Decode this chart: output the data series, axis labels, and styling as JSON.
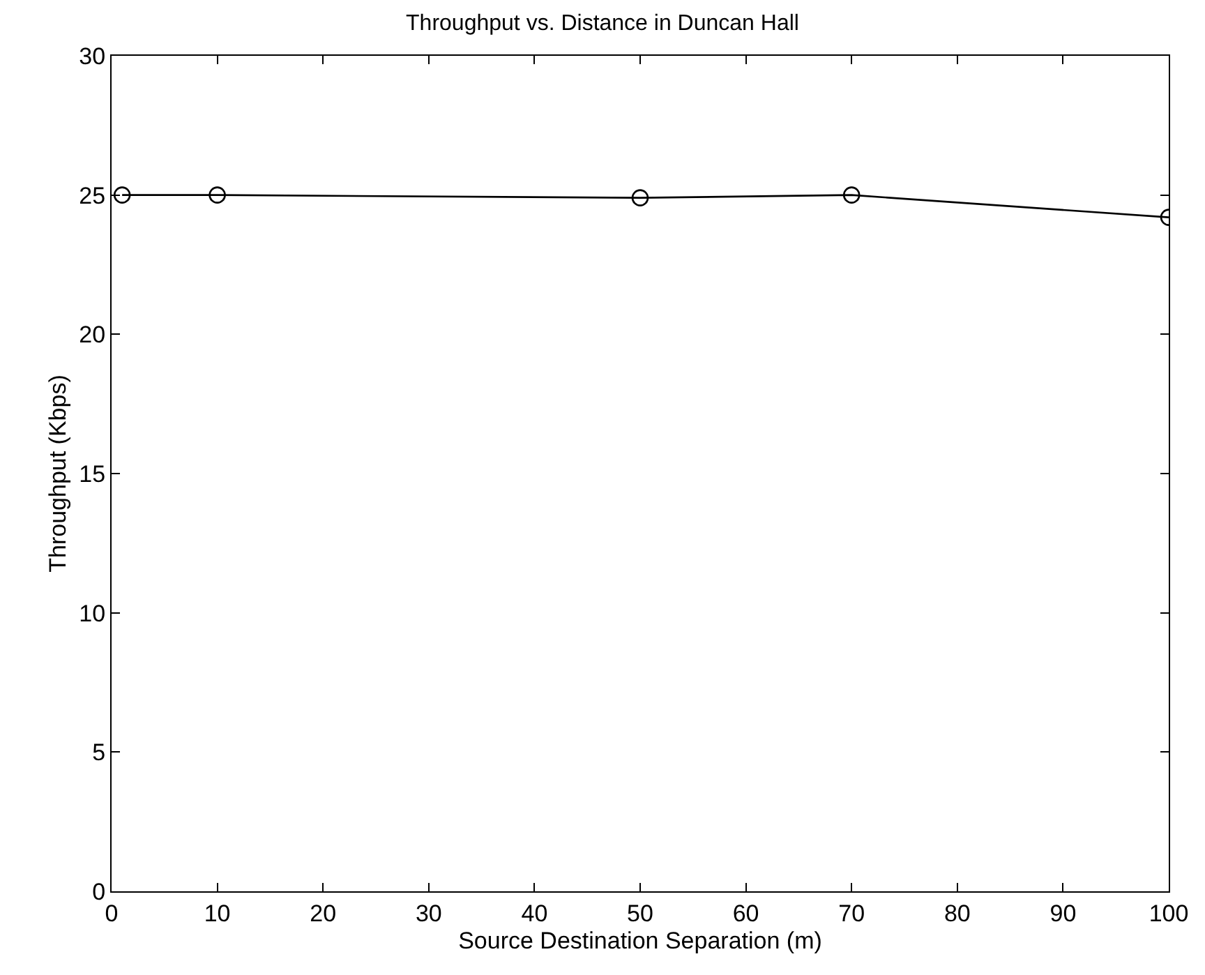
{
  "chart_data": {
    "type": "line",
    "title": "Throughput vs. Distance in Duncan Hall",
    "xlabel": "Source Destination Separation (m)",
    "ylabel": "Throughput (Kbps)",
    "x": [
      1,
      10,
      50,
      70,
      100
    ],
    "series": [
      {
        "color": "#000000",
        "values": [
          25,
          25,
          24.9,
          25,
          24.2
        ]
      }
    ],
    "xlim": [
      0,
      100
    ],
    "xticks": [
      0,
      10,
      20,
      30,
      40,
      50,
      60,
      70,
      80,
      90,
      100
    ],
    "ylim": [
      0,
      30
    ],
    "yticks": [
      0,
      5,
      10,
      15,
      20,
      25,
      30
    ],
    "marker": "circle",
    "line_style": "solid",
    "grid": false
  }
}
